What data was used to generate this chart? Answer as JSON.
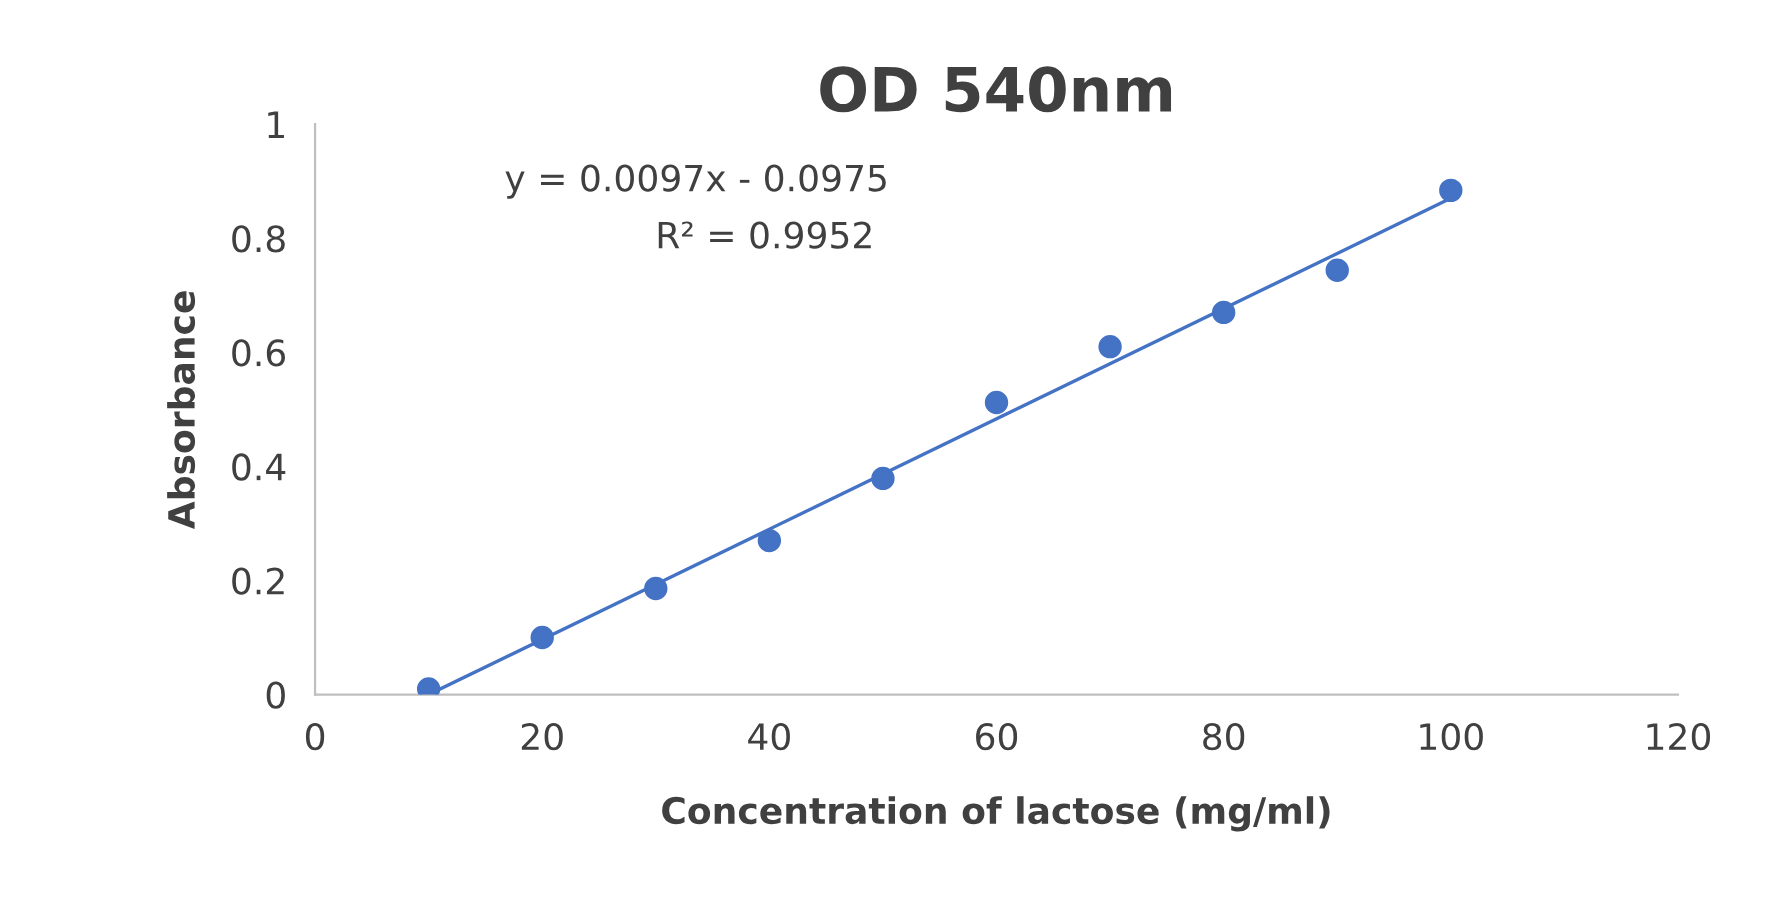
{
  "chart_data": {
    "type": "scatter",
    "title": "OD 540nm",
    "xlabel": "Concentration of lactose (mg/ml)",
    "ylabel": "Absorbance",
    "x": [
      10,
      20,
      30,
      40,
      50,
      60,
      70,
      80,
      90,
      100
    ],
    "series": [
      {
        "color": "#4472c4",
        "values": [
          0.01,
          0.1,
          0.186,
          0.27,
          0.379,
          0.512,
          0.61,
          0.67,
          0.744,
          0.884
        ],
        "marker": "circle"
      },
      {
        "type": "line",
        "color": "#4472c4",
        "x": [
          10,
          100
        ],
        "values": [
          0.0,
          0.87
        ],
        "marker": "none"
      }
    ],
    "annotations": [
      "y = 0.0097x - 0.0975",
      "R² = 0.9952"
    ],
    "xlim": [
      0,
      120
    ],
    "xticks": [
      0,
      20,
      40,
      60,
      80,
      100,
      120
    ],
    "ylim": [
      0,
      1
    ],
    "yticks": [
      0,
      0.2,
      0.4,
      0.6,
      0.8,
      1
    ],
    "grid": false,
    "legend": false
  }
}
